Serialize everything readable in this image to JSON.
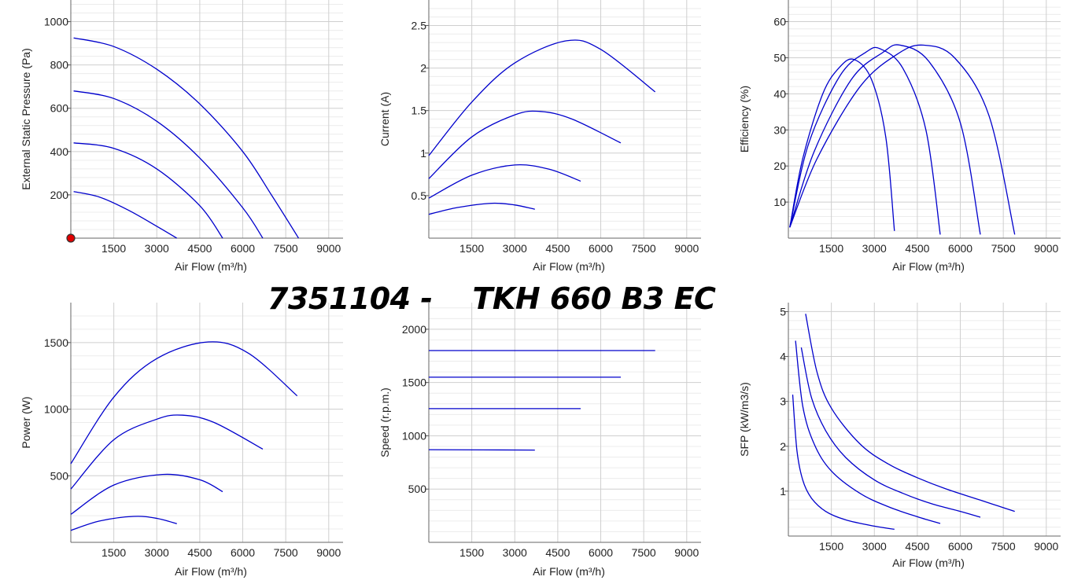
{
  "page_title": "7351104 -    TKH 660 B3 EC",
  "chart_data": [
    {
      "type": "line",
      "id": "pressure",
      "xlabel": "Air Flow (m³/h)",
      "ylabel": "External Static Pressure (Pa)",
      "xlim": [
        0,
        9500
      ],
      "ylim": [
        0,
        1100
      ],
      "x_ticks": [
        1500,
        3000,
        4500,
        6000,
        7500,
        9000
      ],
      "x_tick_labels": [
        "1500",
        "3000",
        "4500",
        "6000",
        "7500",
        "9000"
      ],
      "y_ticks": [
        200,
        400,
        600,
        800,
        1000
      ],
      "y_tick_labels": [
        "200",
        "400",
        "600",
        "800",
        "1000"
      ],
      "line_color": "#0000cc",
      "marker": {
        "x": 0,
        "y": 0,
        "color": "#e00000"
      },
      "series": [
        {
          "points": [
            [
              100,
              215
            ],
            [
              1000,
              190
            ],
            [
              2000,
              130
            ],
            [
              3000,
              55
            ],
            [
              3700,
              0
            ]
          ]
        },
        {
          "points": [
            [
              100,
              440
            ],
            [
              1500,
              415
            ],
            [
              3000,
              320
            ],
            [
              4500,
              150
            ],
            [
              5300,
              0
            ]
          ]
        },
        {
          "points": [
            [
              100,
              680
            ],
            [
              1500,
              645
            ],
            [
              3000,
              540
            ],
            [
              4500,
              370
            ],
            [
              6000,
              140
            ],
            [
              6700,
              0
            ]
          ]
        },
        {
          "points": [
            [
              100,
              925
            ],
            [
              1500,
              885
            ],
            [
              3000,
              780
            ],
            [
              4500,
              620
            ],
            [
              6000,
              400
            ],
            [
              7000,
              200
            ],
            [
              7950,
              0
            ]
          ]
        }
      ]
    },
    {
      "type": "line",
      "id": "current",
      "xlabel": "Air Flow (m³/h)",
      "ylabel": "Current (A)",
      "xlim": [
        0,
        9500
      ],
      "ylim": [
        0,
        2.8
      ],
      "x_ticks": [
        1500,
        3000,
        4500,
        6000,
        7500,
        9000
      ],
      "x_tick_labels": [
        "1500",
        "3000",
        "4500",
        "6000",
        "7500",
        "9000"
      ],
      "y_ticks": [
        0.5,
        1,
        1.5,
        2,
        2.5
      ],
      "y_tick_labels": [
        "0.5",
        "1",
        "1.5",
        "2",
        "2.5"
      ],
      "line_color": "#0000cc",
      "series": [
        {
          "points": [
            [
              0,
              0.28
            ],
            [
              1000,
              0.36
            ],
            [
              2200,
              0.41
            ],
            [
              3000,
              0.39
            ],
            [
              3700,
              0.34
            ]
          ]
        },
        {
          "points": [
            [
              0,
              0.47
            ],
            [
              1500,
              0.74
            ],
            [
              3000,
              0.86
            ],
            [
              4200,
              0.81
            ],
            [
              5300,
              0.67
            ]
          ]
        },
        {
          "points": [
            [
              0,
              0.7
            ],
            [
              1500,
              1.19
            ],
            [
              3000,
              1.45
            ],
            [
              3900,
              1.49
            ],
            [
              5000,
              1.4
            ],
            [
              6700,
              1.12
            ]
          ]
        },
        {
          "points": [
            [
              0,
              0.97
            ],
            [
              1500,
              1.6
            ],
            [
              3000,
              2.06
            ],
            [
              4800,
              2.32
            ],
            [
              6000,
              2.22
            ],
            [
              7900,
              1.72
            ]
          ]
        }
      ]
    },
    {
      "type": "line",
      "id": "efficiency",
      "xlabel": "Air Flow (m³/h)",
      "ylabel": "Efficiency (%)",
      "xlim": [
        0,
        9500
      ],
      "ylim": [
        0,
        66
      ],
      "x_ticks": [
        1500,
        3000,
        4500,
        6000,
        7500,
        9000
      ],
      "x_tick_labels": [
        "1500",
        "3000",
        "4500",
        "6000",
        "7500",
        "9000"
      ],
      "y_ticks": [
        10,
        20,
        30,
        40,
        50,
        60
      ],
      "y_tick_labels": [
        "10",
        "20",
        "30",
        "40",
        "50",
        "60"
      ],
      "line_color": "#0000cc",
      "series": [
        {
          "points": [
            [
              50,
              3
            ],
            [
              500,
              22
            ],
            [
              1200,
              40
            ],
            [
              1800,
              47.5
            ],
            [
              2300,
              49.5
            ],
            [
              2900,
              44
            ],
            [
              3400,
              28
            ],
            [
              3700,
              2
            ]
          ]
        },
        {
          "points": [
            [
              50,
              3
            ],
            [
              700,
              26
            ],
            [
              1800,
              45
            ],
            [
              2700,
              51.5
            ],
            [
              3200,
              52.5
            ],
            [
              4000,
              47
            ],
            [
              4800,
              30
            ],
            [
              5300,
              1
            ]
          ]
        },
        {
          "points": [
            [
              50,
              3
            ],
            [
              900,
              24
            ],
            [
              2200,
              44
            ],
            [
              3300,
              51.5
            ],
            [
              3900,
              53.5
            ],
            [
              4900,
              49
            ],
            [
              6000,
              32
            ],
            [
              6700,
              1
            ]
          ]
        },
        {
          "points": [
            [
              50,
              3
            ],
            [
              1000,
              22
            ],
            [
              2500,
              42
            ],
            [
              3800,
              51
            ],
            [
              4700,
              53.5
            ],
            [
              5800,
              50
            ],
            [
              7000,
              34
            ],
            [
              7900,
              1
            ]
          ]
        }
      ]
    },
    {
      "type": "line",
      "id": "power",
      "xlabel": "Air Flow (m³/h)",
      "ylabel": "Power (W)",
      "xlim": [
        0,
        9500
      ],
      "ylim": [
        0,
        1800
      ],
      "x_ticks": [
        1500,
        3000,
        4500,
        6000,
        7500,
        9000
      ],
      "x_tick_labels": [
        "1500",
        "3000",
        "4500",
        "6000",
        "7500",
        "9000"
      ],
      "y_ticks": [
        500,
        1000,
        1500
      ],
      "y_tick_labels": [
        "500",
        "1000",
        "1500"
      ],
      "line_color": "#0000cc",
      "series": [
        {
          "points": [
            [
              0,
              90
            ],
            [
              1000,
              160
            ],
            [
              2200,
              195
            ],
            [
              3000,
              180
            ],
            [
              3700,
              140
            ]
          ]
        },
        {
          "points": [
            [
              0,
              210
            ],
            [
              1500,
              430
            ],
            [
              3200,
              510
            ],
            [
              4500,
              470
            ],
            [
              5300,
              380
            ]
          ]
        },
        {
          "points": [
            [
              0,
              400
            ],
            [
              1500,
              770
            ],
            [
              3000,
              925
            ],
            [
              3900,
              955
            ],
            [
              5000,
              900
            ],
            [
              6700,
              700
            ]
          ]
        },
        {
          "points": [
            [
              0,
              590
            ],
            [
              1500,
              1090
            ],
            [
              3000,
              1380
            ],
            [
              4800,
              1505
            ],
            [
              6200,
              1420
            ],
            [
              7900,
              1100
            ]
          ]
        }
      ]
    },
    {
      "type": "line",
      "id": "speed",
      "xlabel": "Air Flow (m³/h)",
      "ylabel": "Speed (r.p.m.)",
      "xlim": [
        0,
        9500
      ],
      "ylim": [
        0,
        2250
      ],
      "x_ticks": [
        1500,
        3000,
        4500,
        6000,
        7500,
        9000
      ],
      "x_tick_labels": [
        "1500",
        "3000",
        "4500",
        "6000",
        "7500",
        "9000"
      ],
      "y_ticks": [
        500,
        1000,
        1500,
        2000
      ],
      "y_tick_labels": [
        "500",
        "1000",
        "1500",
        "2000"
      ],
      "line_color": "#0000cc",
      "series": [
        {
          "points": [
            [
              0,
              870
            ],
            [
              3700,
              866
            ]
          ]
        },
        {
          "points": [
            [
              0,
              1255
            ],
            [
              5300,
              1255
            ]
          ]
        },
        {
          "points": [
            [
              0,
              1550
            ],
            [
              6700,
              1550
            ]
          ]
        },
        {
          "points": [
            [
              0,
              1800
            ],
            [
              7900,
              1800
            ]
          ]
        }
      ]
    },
    {
      "type": "line",
      "id": "sfp",
      "xlabel": "Air Flow (m³/h)",
      "ylabel": "SFP (kW/m3/s)",
      "xlim": [
        0,
        9500
      ],
      "ylim": [
        0,
        5.2
      ],
      "x_ticks": [
        1500,
        3000,
        4500,
        6000,
        7500,
        9000
      ],
      "x_tick_labels": [
        "1500",
        "3000",
        "4500",
        "6000",
        "7500",
        "9000"
      ],
      "y_ticks": [
        1,
        2,
        3,
        4,
        5
      ],
      "y_tick_labels": [
        "1",
        "2",
        "3",
        "4",
        "5"
      ],
      "line_color": "#0000cc",
      "series": [
        {
          "points": [
            [
              150,
              3.15
            ],
            [
              300,
              1.9
            ],
            [
              500,
              1.25
            ],
            [
              800,
              0.85
            ],
            [
              1300,
              0.55
            ],
            [
              2000,
              0.36
            ],
            [
              3000,
              0.22
            ],
            [
              3700,
              0.15
            ]
          ]
        },
        {
          "points": [
            [
              250,
              4.35
            ],
            [
              500,
              2.9
            ],
            [
              900,
              2.05
            ],
            [
              1500,
              1.45
            ],
            [
              2500,
              0.95
            ],
            [
              3500,
              0.65
            ],
            [
              4500,
              0.43
            ],
            [
              5300,
              0.28
            ]
          ]
        },
        {
          "points": [
            [
              450,
              4.2
            ],
            [
              800,
              3.1
            ],
            [
              1300,
              2.35
            ],
            [
              2000,
              1.75
            ],
            [
              3000,
              1.25
            ],
            [
              4000,
              0.95
            ],
            [
              5000,
              0.72
            ],
            [
              6000,
              0.55
            ],
            [
              6700,
              0.42
            ]
          ]
        },
        {
          "points": [
            [
              600,
              4.95
            ],
            [
              1000,
              3.65
            ],
            [
              1500,
              2.85
            ],
            [
              2500,
              2.05
            ],
            [
              3500,
              1.6
            ],
            [
              4500,
              1.3
            ],
            [
              5500,
              1.05
            ],
            [
              6700,
              0.8
            ],
            [
              7900,
              0.55
            ]
          ]
        }
      ]
    }
  ]
}
